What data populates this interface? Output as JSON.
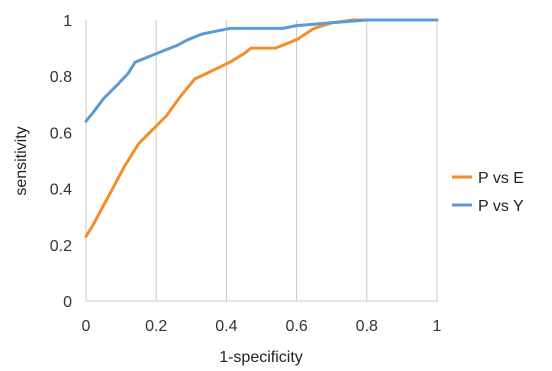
{
  "chart_data": {
    "type": "line",
    "xlabel": "1-specificity",
    "ylabel": "sensitivity",
    "xlim": [
      0,
      1
    ],
    "ylim": [
      0,
      1
    ],
    "x_ticks": [
      "0",
      "0.2",
      "0.4",
      "0.6",
      "0.8",
      "1"
    ],
    "y_ticks": [
      "0",
      "0.2",
      "0.4",
      "0.6",
      "0.8",
      "1"
    ],
    "grid": "vertical",
    "legend_position": "right",
    "series": [
      {
        "name": "P vs E",
        "color": "#f28e2b",
        "points": [
          [
            0,
            0.23
          ],
          [
            0.02,
            0.27
          ],
          [
            0.05,
            0.34
          ],
          [
            0.08,
            0.41
          ],
          [
            0.11,
            0.48
          ],
          [
            0.15,
            0.56
          ],
          [
            0.19,
            0.61
          ],
          [
            0.23,
            0.66
          ],
          [
            0.27,
            0.73
          ],
          [
            0.31,
            0.79
          ],
          [
            0.36,
            0.82
          ],
          [
            0.41,
            0.85
          ],
          [
            0.45,
            0.88
          ],
          [
            0.47,
            0.9
          ],
          [
            0.54,
            0.9
          ],
          [
            0.6,
            0.93
          ],
          [
            0.65,
            0.97
          ],
          [
            0.7,
            0.99
          ],
          [
            0.76,
            1.0
          ],
          [
            0.8,
            1.0
          ],
          [
            1.0,
            1.0
          ]
        ]
      },
      {
        "name": "P vs Y",
        "color": "#5b9bd5",
        "points": [
          [
            0,
            0.64
          ],
          [
            0.02,
            0.67
          ],
          [
            0.05,
            0.72
          ],
          [
            0.09,
            0.77
          ],
          [
            0.12,
            0.81
          ],
          [
            0.14,
            0.85
          ],
          [
            0.18,
            0.87
          ],
          [
            0.22,
            0.89
          ],
          [
            0.26,
            0.91
          ],
          [
            0.29,
            0.93
          ],
          [
            0.33,
            0.95
          ],
          [
            0.37,
            0.96
          ],
          [
            0.41,
            0.97
          ],
          [
            0.5,
            0.97
          ],
          [
            0.56,
            0.97
          ],
          [
            0.6,
            0.98
          ],
          [
            0.7,
            0.99
          ],
          [
            0.8,
            1.0
          ],
          [
            1.0,
            1.0
          ]
        ]
      }
    ]
  }
}
